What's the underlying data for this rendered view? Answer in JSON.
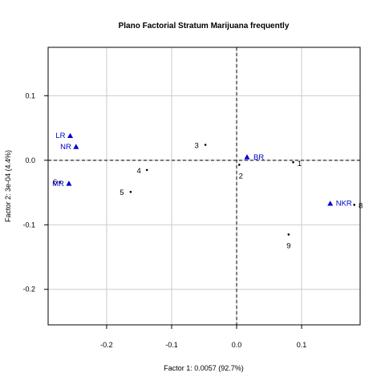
{
  "chart_data": {
    "type": "scatter",
    "title": "Plano Factorial Stratum Marijuana frequently",
    "xlabel": "Factor 1: 0.0057 (92.7%)",
    "ylabel": "Factor 2: 3e-04 (4.4%)",
    "xlim": [
      -0.29,
      0.19
    ],
    "ylim": [
      -0.255,
      0.175
    ],
    "x_ticks": [
      -0.2,
      -0.1,
      0.0,
      0.1
    ],
    "x_tick_labels": [
      "-0.2",
      "-0.1",
      "0.0",
      "0.1"
    ],
    "y_ticks": [
      -0.2,
      -0.1,
      0.0,
      0.1
    ],
    "y_tick_labels": [
      "-0.2",
      "-0.1",
      "0.0",
      "0.1"
    ],
    "grid": true,
    "reference_lines": {
      "x": 0,
      "y": 0,
      "style": "dashed"
    },
    "colors": {
      "rows": "#000000",
      "columns": "#0000cc",
      "grid": "#cccccc"
    },
    "series": [
      {
        "marker": "dot",
        "color": "#000000",
        "points": [
          {
            "label": "1",
            "x": 0.087,
            "y": -0.003
          },
          {
            "label": "2",
            "x": 0.004,
            "y": -0.007
          },
          {
            "label": "3",
            "x": -0.048,
            "y": 0.024
          },
          {
            "label": "4",
            "x": -0.138,
            "y": -0.015
          },
          {
            "label": "5",
            "x": -0.163,
            "y": -0.049
          },
          {
            "label": "6",
            "x": -0.272,
            "y": -0.034
          },
          {
            "label": "8",
            "x": 0.181,
            "y": -0.069
          },
          {
            "label": "9",
            "x": 0.08,
            "y": -0.115
          }
        ]
      },
      {
        "marker": "triangle",
        "color": "#0000cc",
        "points": [
          {
            "label": "LR",
            "x": -0.256,
            "y": 0.038
          },
          {
            "label": "NR",
            "x": -0.247,
            "y": 0.021
          },
          {
            "label": "MR",
            "x": -0.258,
            "y": -0.036
          },
          {
            "label": "BR",
            "x": 0.016,
            "y": 0.005
          },
          {
            "label": "NKR",
            "x": 0.144,
            "y": -0.067
          }
        ]
      }
    ]
  }
}
